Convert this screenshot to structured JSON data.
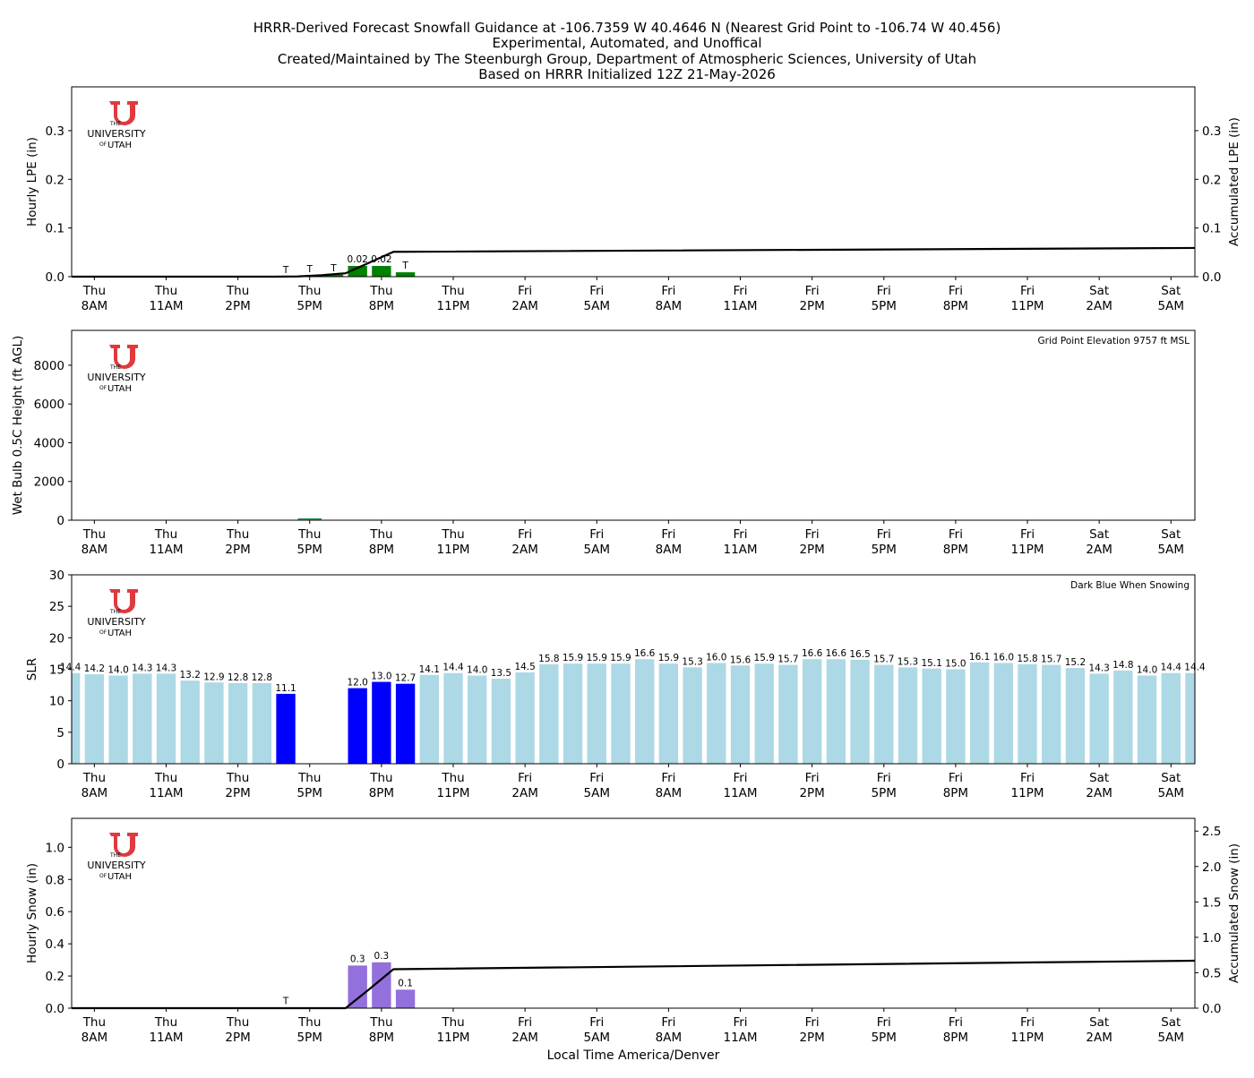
{
  "header": {
    "title_lines": [
      "HRRR-Derived Forecast Snowfall Guidance at -106.7359 W 40.4646 N (Nearest Grid Point to -106.74 W 40.456)",
      "Experimental, Automated, and Unoffical",
      "Created/Maintained by The Steenburgh Group, Department of Atmospheric Sciences, University of Utah",
      "Based on HRRR Initialized 12Z 21-May-2026"
    ]
  },
  "logo": {
    "line1": "THE",
    "line2": "UNIVERSITY",
    "line3": "OF",
    "line4": "UTAH",
    "color": "#e0393e"
  },
  "time_axis": {
    "label": "Local Time America/Denver",
    "ticks": [
      {
        "hour": 1,
        "day": "Thu",
        "time": "8AM"
      },
      {
        "hour": 4,
        "day": "Thu",
        "time": "11AM"
      },
      {
        "hour": 7,
        "day": "Thu",
        "time": "2PM"
      },
      {
        "hour": 10,
        "day": "Thu",
        "time": "5PM"
      },
      {
        "hour": 13,
        "day": "Thu",
        "time": "8PM"
      },
      {
        "hour": 16,
        "day": "Thu",
        "time": "11PM"
      },
      {
        "hour": 19,
        "day": "Fri",
        "time": "2AM"
      },
      {
        "hour": 22,
        "day": "Fri",
        "time": "5AM"
      },
      {
        "hour": 25,
        "day": "Fri",
        "time": "8AM"
      },
      {
        "hour": 28,
        "day": "Fri",
        "time": "11AM"
      },
      {
        "hour": 31,
        "day": "Fri",
        "time": "2PM"
      },
      {
        "hour": 34,
        "day": "Fri",
        "time": "5PM"
      },
      {
        "hour": 37,
        "day": "Fri",
        "time": "8PM"
      },
      {
        "hour": 40,
        "day": "Fri",
        "time": "11PM"
      },
      {
        "hour": 43,
        "day": "Sat",
        "time": "2AM"
      },
      {
        "hour": 46,
        "day": "Sat",
        "time": "5AM"
      }
    ],
    "xlim": [
      0.05,
      47
    ]
  },
  "chart_data": [
    {
      "type": "bar",
      "id": "lpe",
      "ylabel": "Hourly LPE (in)",
      "ylabel_right": "Accumulated LPE (in)",
      "ylim": [
        0,
        0.39
      ],
      "yticks": [
        "0.0",
        "0.1",
        "0.2",
        "0.3"
      ],
      "ytick_values": [
        0,
        0.1,
        0.2,
        0.3
      ],
      "right_yticks": [
        "0.0",
        "0.1",
        "0.2",
        "0.3"
      ],
      "right_ytick_values": [
        0,
        0.1,
        0.2,
        0.3
      ],
      "bar_color": "#008000",
      "bars": [
        {
          "hour": 9,
          "value": 0.0003,
          "label": "T"
        },
        {
          "hour": 10,
          "value": 0.0015,
          "label": "T"
        },
        {
          "hour": 11,
          "value": 0.004,
          "label": "T"
        },
        {
          "hour": 12,
          "value": 0.022,
          "label": "0.02"
        },
        {
          "hour": 13,
          "value": 0.022,
          "label": "0.02"
        },
        {
          "hour": 14,
          "value": 0.009,
          "label": "T"
        }
      ],
      "accumulated": {
        "color": "#000000",
        "x": [
          0,
          8.5,
          9.5,
          10.5,
          11.5,
          12.5,
          13.5,
          47
        ],
        "y": [
          0,
          0,
          0.0005,
          0.003,
          0.007,
          0.029,
          0.051,
          0.059
        ]
      }
    },
    {
      "type": "line",
      "id": "wetbulb",
      "ylabel": "Wet Bulb 0.5C Height (ft AGL)",
      "annotation": "Grid Point Elevation 9757 ft MSL",
      "ylim": [
        0,
        9800
      ],
      "yticks": [
        "0",
        "2000",
        "4000",
        "6000",
        "8000"
      ],
      "ytick_values": [
        0,
        2000,
        4000,
        6000,
        8000
      ],
      "line_color": "#2e8b57",
      "x": [
        9.5,
        10.5
      ],
      "y": [
        20,
        20
      ]
    },
    {
      "type": "bar",
      "id": "slr",
      "ylabel": "SLR",
      "annotation": "Dark Blue When Snowing",
      "ylim": [
        0,
        30
      ],
      "yticks": [
        "0",
        "5",
        "10",
        "15",
        "20",
        "25",
        "30"
      ],
      "ytick_values": [
        0,
        5,
        10,
        15,
        20,
        25,
        30
      ],
      "color_default": "#add8e6",
      "color_snowing": "#0000ff",
      "values": [
        14.4,
        14.2,
        14.0,
        14.3,
        14.3,
        13.2,
        12.9,
        12.8,
        12.8,
        11.1,
        null,
        null,
        12.0,
        13.0,
        12.7,
        14.1,
        14.4,
        14.0,
        13.5,
        14.5,
        15.8,
        15.9,
        15.9,
        15.9,
        16.6,
        15.9,
        15.3,
        16.0,
        15.6,
        15.9,
        15.7,
        16.6,
        16.6,
        16.5,
        15.7,
        15.3,
        15.1,
        15.0,
        16.1,
        16.0,
        15.8,
        15.7,
        15.2,
        14.3,
        14.8,
        14.0,
        14.4,
        14.4
      ],
      "labels": [
        "14.4",
        "14.2",
        "14.0",
        "14.3",
        "14.3",
        "13.2",
        "12.9",
        "12.8",
        "12.8",
        "11.1",
        "",
        "",
        "12.0",
        "13.0",
        "12.7",
        "14.1",
        "14.4",
        "14.0",
        "13.5",
        "14.5",
        "15.8",
        "15.9",
        "15.9",
        "15.9",
        "16.6",
        "15.9",
        "15.3",
        "16.0",
        "15.6",
        "15.9",
        "15.7",
        "16.6",
        "16.6",
        "16.5",
        "15.7",
        "15.3",
        "15.1",
        "15.0",
        "16.1",
        "16.0",
        "15.8",
        "15.7",
        "15.2",
        "14.3",
        "14.8",
        "14.0",
        "14.4",
        "14.4"
      ],
      "snowing_hours": [
        9,
        12,
        13,
        14
      ]
    },
    {
      "type": "bar",
      "id": "snow",
      "ylabel": "Hourly Snow (in)",
      "ylabel_right": "Accumulated Snow (in)",
      "ylim": [
        0,
        1.18
      ],
      "yticks": [
        "0.0",
        "0.2",
        "0.4",
        "0.6",
        "0.8",
        "1.0"
      ],
      "ytick_values": [
        0,
        0.2,
        0.4,
        0.6,
        0.8,
        1.0
      ],
      "right_ylim": [
        0,
        2.68
      ],
      "right_yticks": [
        "0.0",
        "0.5",
        "1.0",
        "1.5",
        "2.0",
        "2.5"
      ],
      "right_ytick_values": [
        0,
        0.5,
        1.0,
        1.5,
        2.0,
        2.5
      ],
      "bar_color": "#9370db",
      "bars": [
        {
          "hour": 9,
          "value": 0.002,
          "label": "T"
        },
        {
          "hour": 12,
          "value": 0.265,
          "label": "0.3"
        },
        {
          "hour": 13,
          "value": 0.285,
          "label": "0.3"
        },
        {
          "hour": 14,
          "value": 0.115,
          "label": "0.1"
        }
      ],
      "accumulated": {
        "color": "#000000",
        "x": [
          0,
          11.5,
          12.5,
          13.5,
          47
        ],
        "y": [
          0,
          0,
          0.27,
          0.55,
          0.67
        ]
      }
    }
  ]
}
